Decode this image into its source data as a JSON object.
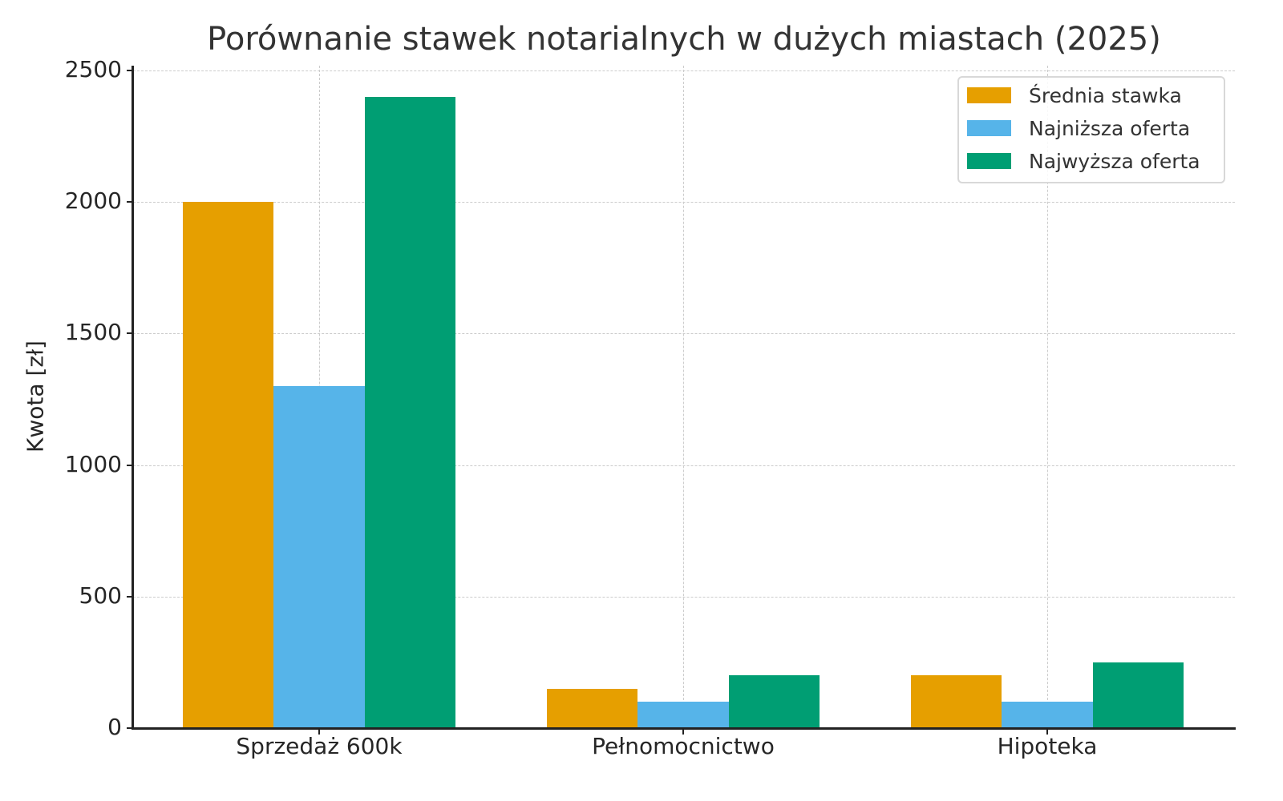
{
  "chart_data": {
    "type": "bar",
    "title": "Porównanie stawek notarialnych w dużych miastach (2025)",
    "xlabel": "",
    "ylabel": "Kwota [zł]",
    "ylim": [
      0,
      2500
    ],
    "yticks": [
      "0",
      "500",
      "1000",
      "1500",
      "2000",
      "2500"
    ],
    "categories": [
      "Sprzedaż 600k",
      "Pełnomocnictwo",
      "Hipoteka"
    ],
    "series": [
      {
        "name": "Średnia stawka",
        "color": "#E69F00",
        "values": [
          2000,
          150,
          200
        ]
      },
      {
        "name": "Najniższa oferta",
        "color": "#56B4E9",
        "values": [
          1300,
          100,
          100
        ]
      },
      {
        "name": "Najwyższa oferta",
        "color": "#009E73",
        "values": [
          2400,
          200,
          250
        ]
      }
    ],
    "grid": true,
    "legend_position": "upper right"
  }
}
